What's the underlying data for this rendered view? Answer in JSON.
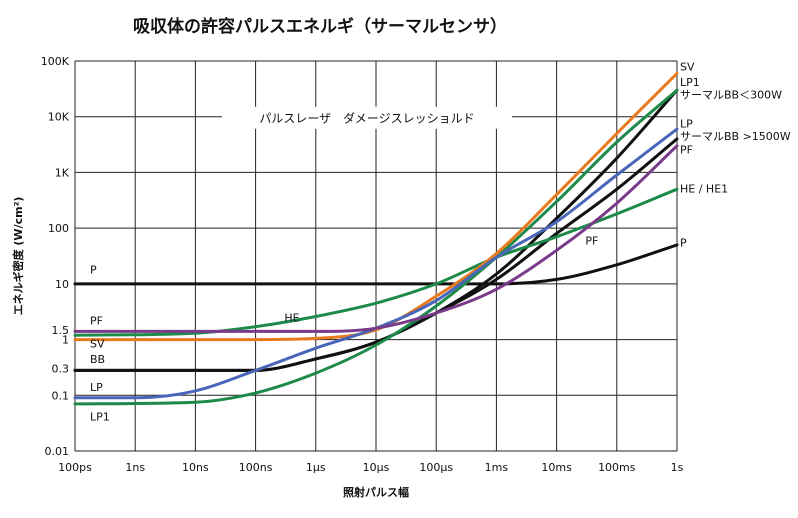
{
  "chart_data": {
    "type": "line",
    "title": "吸収体の許容パルスエネルギ（サーマルセンサ）",
    "xlabel": "照射パルス幅",
    "ylabel": "エネルギ密度 (W/cm²)",
    "xscale": "log",
    "yscale": "log",
    "xlim": [
      1e-10,
      1
    ],
    "ylim": [
      0.01,
      100000
    ],
    "grid": true,
    "x_ticks": [
      {
        "value": 1e-10,
        "label": "100ps"
      },
      {
        "value": 1e-09,
        "label": "1ns"
      },
      {
        "value": 1e-08,
        "label": "10ns"
      },
      {
        "value": 1e-07,
        "label": "100ns"
      },
      {
        "value": 1e-06,
        "label": "1μs"
      },
      {
        "value": 1e-05,
        "label": "10μs"
      },
      {
        "value": 0.0001,
        "label": "100μs"
      },
      {
        "value": 0.001,
        "label": "1ms"
      },
      {
        "value": 0.01,
        "label": "10ms"
      },
      {
        "value": 0.1,
        "label": "100ms"
      },
      {
        "value": 1,
        "label": "1s"
      }
    ],
    "y_ticks": [
      {
        "value": 100000,
        "label": "100K"
      },
      {
        "value": 10000,
        "label": "10K"
      },
      {
        "value": 1000,
        "label": "1K"
      },
      {
        "value": 100,
        "label": "100"
      },
      {
        "value": 10,
        "label": "10"
      },
      {
        "value": 1.5,
        "label": "1.5"
      },
      {
        "value": 1,
        "label": "1"
      },
      {
        "value": 0.3,
        "label": "0.3"
      },
      {
        "value": 0.1,
        "label": "0.1"
      },
      {
        "value": 0.01,
        "label": "0.01"
      }
    ],
    "banner": "パルスレーザ　ダメージスレッショルド",
    "series": [
      {
        "key": "p",
        "color": "#111111",
        "points": [
          [
            1e-10,
            10
          ],
          [
            1e-05,
            10
          ],
          [
            0.0001,
            10
          ],
          [
            0.001,
            10
          ],
          [
            0.01,
            12
          ],
          [
            0.1,
            22
          ],
          [
            1,
            50
          ]
        ]
      },
      {
        "key": "bb300",
        "color": "#111111",
        "points": [
          [
            1e-10,
            0.28
          ],
          [
            1e-07,
            0.28
          ],
          [
            1e-06,
            0.45
          ],
          [
            1e-05,
            0.9
          ],
          [
            0.0001,
            3
          ],
          [
            0.001,
            15
          ],
          [
            0.01,
            150
          ],
          [
            0.1,
            1800
          ],
          [
            1,
            30000
          ]
        ]
      },
      {
        "key": "bb1500",
        "color": "#111111",
        "points": [
          [
            1e-10,
            0.28
          ],
          [
            1e-07,
            0.28
          ],
          [
            1e-06,
            0.45
          ],
          [
            1e-05,
            0.9
          ],
          [
            0.0001,
            3
          ],
          [
            0.001,
            12
          ],
          [
            0.01,
            80
          ],
          [
            0.1,
            500
          ],
          [
            1,
            4000
          ]
        ]
      },
      {
        "key": "he1",
        "color": "#1e8a4a",
        "points": [
          [
            1e-10,
            1.2
          ],
          [
            1e-08,
            1.3
          ],
          [
            1e-07,
            1.7
          ],
          [
            1e-06,
            2.6
          ],
          [
            1e-05,
            4.5
          ],
          [
            0.0001,
            10
          ],
          [
            0.001,
            30
          ],
          [
            0.01,
            70
          ],
          [
            0.1,
            180
          ],
          [
            1,
            500
          ]
        ]
      },
      {
        "key": "lp1",
        "color": "#1e8a4a",
        "points": [
          [
            1e-10,
            0.07
          ],
          [
            1e-08,
            0.075
          ],
          [
            1e-07,
            0.11
          ],
          [
            1e-06,
            0.25
          ],
          [
            1e-05,
            0.8
          ],
          [
            0.0001,
            4
          ],
          [
            0.001,
            30
          ],
          [
            0.01,
            300
          ],
          [
            0.1,
            3500
          ],
          [
            1,
            30000
          ]
        ]
      },
      {
        "key": "sv",
        "color": "#e87a1e",
        "points": [
          [
            1e-10,
            1
          ],
          [
            1e-07,
            1
          ],
          [
            1e-06,
            1.05
          ],
          [
            1e-05,
            1.5
          ],
          [
            0.0001,
            6
          ],
          [
            0.001,
            35
          ],
          [
            0.01,
            400
          ],
          [
            0.1,
            5000
          ],
          [
            1,
            60000
          ]
        ]
      },
      {
        "key": "lp",
        "color": "#4a66b8",
        "points": [
          [
            1e-10,
            0.09
          ],
          [
            1e-09,
            0.09
          ],
          [
            1e-08,
            0.12
          ],
          [
            1e-07,
            0.28
          ],
          [
            1e-06,
            0.7
          ],
          [
            1e-05,
            1.6
          ],
          [
            0.0001,
            5
          ],
          [
            0.001,
            30
          ],
          [
            0.01,
            130
          ],
          [
            0.1,
            900
          ],
          [
            1,
            6000
          ]
        ]
      },
      {
        "key": "pf",
        "color": "#7a3a8a",
        "points": [
          [
            1e-10,
            1.4
          ],
          [
            1e-07,
            1.4
          ],
          [
            1e-06,
            1.4
          ],
          [
            1e-05,
            1.6
          ],
          [
            0.0001,
            3
          ],
          [
            0.001,
            8
          ],
          [
            0.01,
            40
          ],
          [
            0.1,
            280
          ],
          [
            1,
            3000
          ]
        ]
      }
    ],
    "labels": {
      "left": [
        {
          "text": "P",
          "y": 18
        },
        {
          "text": "PF",
          "y": 2.2
        },
        {
          "text": "SV",
          "y": 0.85
        },
        {
          "text": "BB",
          "y": 0.45
        },
        {
          "text": "LP",
          "y": 0.14
        },
        {
          "text": "LP1",
          "y": 0.042
        }
      ],
      "inner": [
        {
          "text": "HE",
          "x": 3e-07,
          "y": 2.5
        },
        {
          "text": "PF",
          "x": 0.03,
          "y": 60
        }
      ],
      "right": [
        {
          "text": "SV",
          "y": 80000
        },
        {
          "text": "LP1",
          "y": 42000
        },
        {
          "text": "サーマルBB＜300W",
          "y": 25000
        },
        {
          "text": "LP",
          "y": 7500
        },
        {
          "text": "サーマルBB >1500W",
          "y": 4500
        },
        {
          "text": "PF",
          "y": 2600
        },
        {
          "text": "HE / HE1",
          "y": 520
        },
        {
          "text": "P",
          "y": 55
        }
      ]
    }
  }
}
